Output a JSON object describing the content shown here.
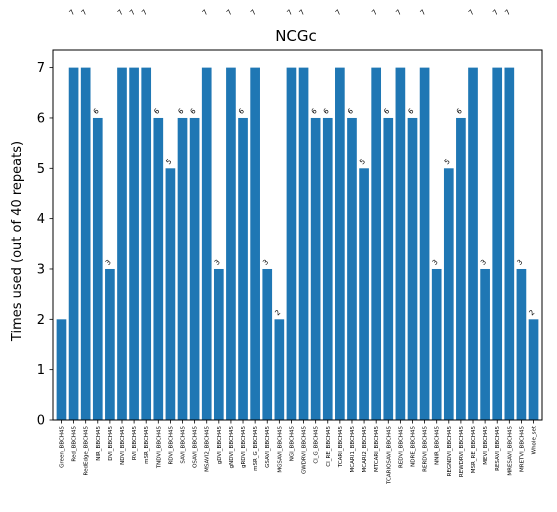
{
  "chart_data": {
    "type": "bar",
    "title": "NCGc",
    "xlabel": "",
    "ylabel": "Times used (out of 40 repeats)",
    "ylim": [
      0,
      7.35
    ],
    "yticks": [
      0,
      1,
      2,
      3,
      4,
      5,
      6,
      7
    ],
    "grid": false,
    "bar_color": "#1f77b4",
    "categories": [
      "Green_BBCH45",
      "Red_BBCH45",
      "RedEdge_BBCH45",
      "NIR_BBCH45",
      "DVI_BBCH45",
      "NDVI_BBCH45",
      "RVI_BBCH45",
      "mSR_BBCH45",
      "TNDVI_BBCH45",
      "RDVI_BBCH45",
      "SAVI_BBCH45",
      "OSAVI_BBCH45",
      "MSAVI2_BBCH45",
      "gDVI_BBCH45",
      "gNDVI_BBCH45",
      "gRDVI_BBCH45",
      "mSR_G_BBCH45",
      "GSAVI_BBCH45",
      "MGSAVI_BBCH45",
      "NGI_BBCH45",
      "GWDRVI_BBCH45",
      "CI_G_BBCH45",
      "CI_RE_BBCH45",
      "TCARI_BBCH45",
      "MCARI1_BBCH45",
      "MCARI2_BBCH45",
      "MTCARI_BBCH45",
      "TCARIOSAVI_BBCH45",
      "REDVI_BBCH45",
      "NDRE_BBCH45",
      "RERDVI_BBCH45",
      "NNIR_BBCH45",
      "REGNDVI_BBCH45",
      "REWDRVI_BBCH45",
      "MSR_RE_BBCH45",
      "MEVI_BBCH45",
      "RESAVI_BBCH45",
      "MRESAVI_BBCH45",
      "MRETVI_BBCH45",
      "Whole_set"
    ],
    "values": [
      2,
      7,
      7,
      6,
      3,
      7,
      7,
      7,
      6,
      5,
      6,
      6,
      7,
      3,
      7,
      6,
      7,
      3,
      2,
      7,
      7,
      6,
      6,
      7,
      6,
      5,
      7,
      6,
      7,
      6,
      7,
      3,
      5,
      6,
      7,
      3,
      7,
      7,
      3,
      2
    ],
    "data_labels": [
      "",
      "7",
      "7",
      "6",
      "3",
      "7",
      "7",
      "7",
      "6",
      "5",
      "6",
      "6",
      "7",
      "3",
      "7",
      "6",
      "7",
      "3",
      "2",
      "7",
      "7",
      "6",
      "6",
      "7",
      "6",
      "5",
      "7",
      "6",
      "7",
      "6",
      "7",
      "3",
      "5",
      "6",
      "7",
      "3",
      "7",
      "7",
      "3",
      "2"
    ]
  }
}
